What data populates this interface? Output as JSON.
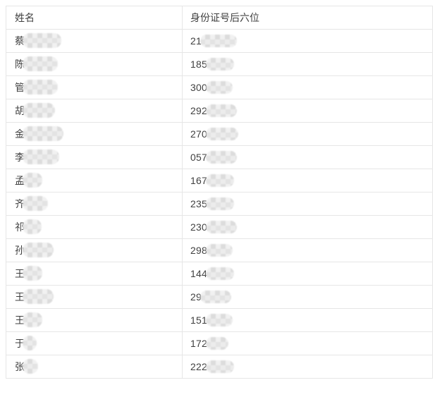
{
  "colors": {
    "page_bg": "#ffffff",
    "border": "#e6e6e6",
    "outer_border": "#dedede",
    "text": "#3f3f3f",
    "mask_a": "#d9d9d9",
    "mask_b": "#ebebeb",
    "mask_c": "#e0e0e0",
    "mask_d": "#f0f0f0"
  },
  "table": {
    "columns": [
      {
        "key": "name",
        "label": "姓名"
      },
      {
        "key": "id_last6",
        "label": "身份证号后六位"
      }
    ],
    "rows": [
      {
        "name": "蔡",
        "id_prefix": "21",
        "name_mask_w": 55,
        "id_mask_w": 52
      },
      {
        "name": "陈",
        "id_prefix": "185",
        "name_mask_w": 50,
        "id_mask_w": 40
      },
      {
        "name": "管",
        "id_prefix": "300",
        "name_mask_w": 50,
        "id_mask_w": 38
      },
      {
        "name": "胡",
        "id_prefix": "292",
        "name_mask_w": 46,
        "id_mask_w": 44
      },
      {
        "name": "金",
        "id_prefix": "270",
        "name_mask_w": 58,
        "id_mask_w": 46
      },
      {
        "name": "李",
        "id_prefix": "057",
        "name_mask_w": 52,
        "id_mask_w": 44
      },
      {
        "name": "孟",
        "id_prefix": "167",
        "name_mask_w": 28,
        "id_mask_w": 40
      },
      {
        "name": "齐",
        "id_prefix": "235",
        "name_mask_w": 36,
        "id_mask_w": 40
      },
      {
        "name": "祁",
        "id_prefix": "230",
        "name_mask_w": 27,
        "id_mask_w": 44
      },
      {
        "name": "孙",
        "id_prefix": "298",
        "name_mask_w": 44,
        "id_mask_w": 38
      },
      {
        "name": "王",
        "id_prefix": "144",
        "name_mask_w": 28,
        "id_mask_w": 40
      },
      {
        "name": "王",
        "id_prefix": "29",
        "name_mask_w": 44,
        "id_mask_w": 44
      },
      {
        "name": "王",
        "id_prefix": "151",
        "name_mask_w": 28,
        "id_mask_w": 38
      },
      {
        "name": "于",
        "id_prefix": "172",
        "name_mask_w": 20,
        "id_mask_w": 32
      },
      {
        "name": "张",
        "id_prefix": "222",
        "name_mask_w": 22,
        "id_mask_w": 40
      }
    ]
  }
}
